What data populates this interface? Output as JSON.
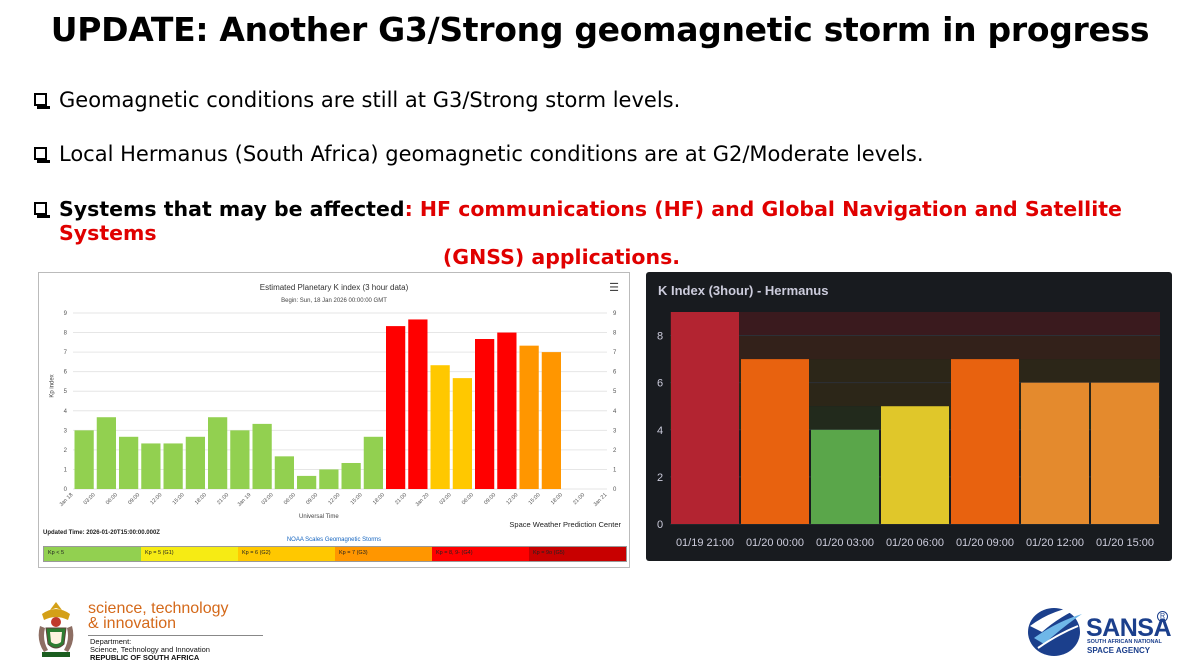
{
  "title": "UPDATE: Another G3/Strong geomagnetic storm in progress",
  "bullets": {
    "b1": "Geomagnetic conditions are still at G3/Strong storm levels.",
    "b2": "Local Hermanus (South Africa) geomagnetic conditions are at G2/Moderate levels.",
    "b3_prefix": "Systems that may be affected",
    "b3_red": ": HF communications (HF) and Global Navigation and Satellite Systems",
    "b3_red_line2": "(GNSS) applications."
  },
  "noaa": {
    "title": "Estimated Planetary K index (3 hour data)",
    "subtitle": "Begin: Sun, 18 Jan 2026 00:00:00 GMT",
    "menu_icon": "hamburger-menu-icon",
    "ylabel": "Kp index",
    "xlabel": "Universal Time",
    "credit": "Space Weather Prediction Center",
    "updated": "Updated Time: 2026-01-20T15:00:00.000Z",
    "scales_title": "NOAA Scales Geomagnetic Storms",
    "legend": [
      "Kp < 5",
      "Kp = 5 (G1)",
      "Kp = 6 (G2)",
      "Kp = 7 (G3)",
      "Kp = 8, 9- (G4)",
      "Kp = 9o (G5)"
    ],
    "legend_colors": [
      "#92d050",
      "#f6eb14",
      "#ffc800",
      "#ff9600",
      "#ff0000",
      "#c80000"
    ]
  },
  "hermanus": {
    "title": "K Index (3hour) - Hermanus"
  },
  "chart_data": [
    {
      "type": "bar",
      "title": "Estimated Planetary K index (3 hour data)",
      "subtitle": "Begin: Sun, 18 Jan 2026 00:00:00 GMT",
      "xlabel": "Universal Time",
      "ylabel": "Kp index",
      "ylim": [
        0,
        9
      ],
      "yticks": [
        0,
        1,
        2,
        3,
        4,
        5,
        6,
        7,
        8,
        9
      ],
      "xtick_labels": [
        "Jan 18",
        "03:00",
        "06:00",
        "09:00",
        "12:00",
        "15:00",
        "18:00",
        "21:00",
        "Jan 19",
        "03:00",
        "06:00",
        "09:00",
        "12:00",
        "15:00",
        "18:00",
        "21:00",
        "Jan 20",
        "03:00",
        "06:00",
        "09:00",
        "12:00",
        "15:00",
        "18:00",
        "21:00",
        "Jan 21"
      ],
      "values": [
        3.0,
        3.67,
        2.67,
        2.33,
        2.33,
        2.67,
        3.67,
        3.0,
        3.33,
        1.67,
        0.67,
        1.0,
        1.33,
        2.67,
        8.33,
        8.67,
        6.33,
        5.67,
        7.67,
        8.0,
        7.33,
        7.0
      ],
      "colors": [
        "#92d050",
        "#92d050",
        "#92d050",
        "#92d050",
        "#92d050",
        "#92d050",
        "#92d050",
        "#92d050",
        "#92d050",
        "#92d050",
        "#92d050",
        "#92d050",
        "#92d050",
        "#92d050",
        "#ff0000",
        "#ff0000",
        "#ffc800",
        "#ffc800",
        "#ff0000",
        "#ff0000",
        "#ff9600",
        "#ff9600"
      ],
      "grid": true
    },
    {
      "type": "bar",
      "title": "K Index (3hour) - Hermanus",
      "categories": [
        "01/19 21:00",
        "01/20 00:00",
        "01/20 03:00",
        "01/20 06:00",
        "01/20 09:00",
        "01/20 12:00",
        "01/20 15:00"
      ],
      "values": [
        9,
        7,
        4,
        5,
        7,
        6,
        6
      ],
      "colors": [
        "#b32431",
        "#e8620f",
        "#5aa64a",
        "#e0c72a",
        "#e8620f",
        "#e48a2d",
        "#e48a2d"
      ],
      "yticks": [
        0,
        2,
        4,
        6,
        8
      ],
      "ylim": [
        0,
        9
      ]
    }
  ],
  "logos": {
    "dst_line1": "science, technology",
    "dst_line2": "& innovation",
    "dst_dept": "Department:",
    "dst_dept2": "Science, Technology and Innovation",
    "dst_country": "REPUBLIC OF SOUTH AFRICA",
    "sansa_word": "SANSA",
    "sansa_reg": "R",
    "sansa_t1": "SOUTH AFRICAN NATIONAL",
    "sansa_t2": "SPACE AGENCY"
  }
}
